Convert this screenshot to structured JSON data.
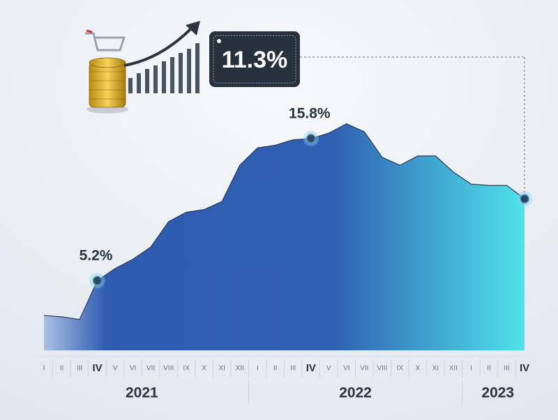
{
  "chart_data": {
    "type": "area",
    "groups": [
      {
        "label": "2021",
        "categories": [
          "I",
          "II",
          "III",
          "IV",
          "V",
          "VI",
          "VII",
          "VIII",
          "IX",
          "X",
          "XI",
          "XII"
        ],
        "values": [
          2.6,
          2.5,
          2.3,
          5.2,
          6.1,
          6.8,
          7.7,
          9.6,
          10.3,
          10.5,
          11.1,
          13.8
        ],
        "value_labels": [
          null,
          null,
          null,
          "5.2%",
          null,
          null,
          null,
          null,
          null,
          null,
          null,
          null
        ]
      },
      {
        "label": "2022",
        "categories": [
          "I",
          "II",
          "III",
          "IV",
          "V",
          "VI",
          "VII",
          "VIII",
          "IX",
          "X",
          "XI",
          "XII"
        ],
        "values": [
          15.1,
          15.3,
          15.7,
          15.8,
          16.2,
          16.9,
          16.3,
          14.4,
          13.8,
          14.5,
          14.5,
          13.3
        ],
        "value_labels": [
          null,
          null,
          null,
          "15.8%",
          null,
          null,
          null,
          null,
          null,
          null,
          null,
          null
        ]
      },
      {
        "label": "2023",
        "categories": [
          "I",
          "II",
          "III",
          "IV"
        ],
        "values": [
          12.4,
          12.3,
          12.3,
          11.3
        ],
        "value_labels": [
          null,
          null,
          null,
          "11.3%"
        ]
      }
    ],
    "colors": [
      "#a9c0e4",
      "#2e5bb0",
      "#2f60b2",
      "#4fe3ea"
    ],
    "line_color": "#2a3b55"
  }
}
